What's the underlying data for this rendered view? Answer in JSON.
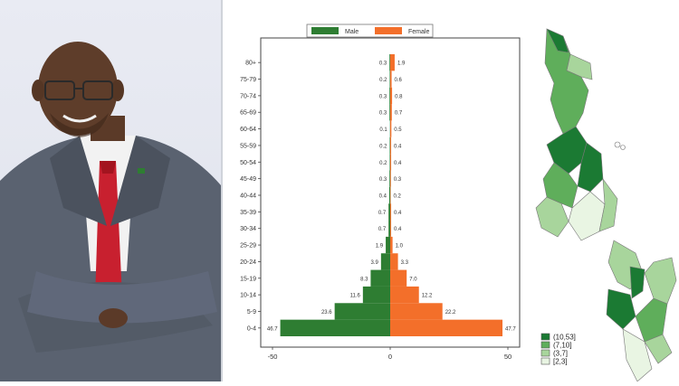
{
  "chart_data": {
    "type": "bar",
    "orientation": "horizontal",
    "categories": [
      "0-4",
      "5-9",
      "10-14",
      "15-19",
      "20-24",
      "25-29",
      "30-34",
      "35-39",
      "40-44",
      "45-49",
      "50-54",
      "55-59",
      "60-64",
      "65-69",
      "70-74",
      "75-79",
      "80+"
    ],
    "series": [
      {
        "name": "Male",
        "color": "#2e7d32",
        "values": [
          46.7,
          23.6,
          11.6,
          8.3,
          3.9,
          1.9,
          0.7,
          0.7,
          0.4,
          0.3,
          0.2,
          0.2,
          0.1,
          0.3,
          0.3,
          0.2,
          0.3
        ],
        "labels": [
          "46.7",
          "23.6",
          "11.6",
          "8.3",
          "3.9",
          "1.9",
          "0.7",
          "0.7",
          "0.4",
          "0.3",
          "0.2",
          "0.2",
          "0.1",
          "0.3",
          "0.3",
          "0.2",
          "0.3"
        ]
      },
      {
        "name": "Female",
        "color": "#f36f2a",
        "values": [
          47.7,
          22.2,
          12.2,
          7.0,
          3.3,
          1.0,
          0.4,
          0.4,
          0.2,
          0.3,
          0.4,
          0.4,
          0.5,
          0.7,
          0.8,
          0.6,
          1.9
        ],
        "labels": [
          "47.7",
          "22.2",
          "12.2",
          "7.0",
          "3.3",
          "1.0",
          "0.4",
          "0.4",
          "0.2",
          "0.3",
          "0.4",
          "0.4",
          "0.5",
          "0.7",
          "0.8",
          "0.6",
          "1.9"
        ]
      }
    ],
    "xlim": [
      -55,
      55
    ],
    "xticks": [
      {
        "value": -50,
        "label": "-50"
      },
      {
        "value": 0,
        "label": "0"
      },
      {
        "value": 50,
        "label": "50"
      }
    ],
    "legend_placement": "top-center",
    "grid": false,
    "title": "",
    "xlabel": "",
    "ylabel": ""
  },
  "map": {
    "legend": [
      {
        "label": "(10,53]",
        "color": "#1b7a33"
      },
      {
        "label": "(7,10]",
        "color": "#5fae5b"
      },
      {
        "label": "(3,7]",
        "color": "#a8d59c"
      },
      {
        "label": "[2,3]",
        "color": "#e9f5e3"
      }
    ]
  },
  "colors": {
    "male": "#2e7d32",
    "female": "#f36f2a",
    "suit": "#5a6270",
    "tie": "#c8202f"
  },
  "icons": {
    "photo": "person-photo-icon",
    "map": "district-map-icon"
  }
}
